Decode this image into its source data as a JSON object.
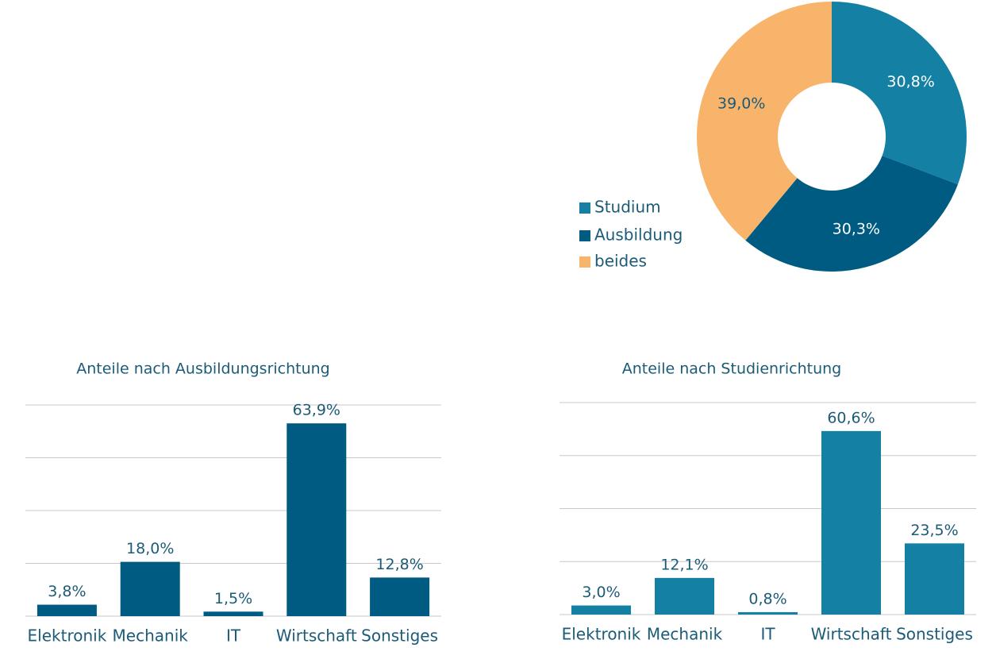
{
  "chart_data": [
    {
      "type": "pie",
      "categories": [
        "Studium",
        "Ausbildung",
        "beides"
      ],
      "values": [
        30.8,
        30.3,
        39.0
      ],
      "value_labels": [
        "30,8%",
        "30,3%",
        "39,0%"
      ],
      "colors": [
        "#1380a4",
        "#005b82",
        "#f9b46b"
      ],
      "donut": true,
      "legend": "left"
    },
    {
      "type": "bar",
      "title": "Anteile nach Ausbildungsrichtung",
      "categories": [
        "Elektronik",
        "Mechanik",
        "IT",
        "Wirtschaft",
        "Sonstiges"
      ],
      "values": [
        3.8,
        18.0,
        1.5,
        63.9,
        12.8
      ],
      "value_labels": [
        "3,8%",
        "18,0%",
        "1,5%",
        "63,9%",
        "12,8%"
      ],
      "color": "#005b82",
      "ylim": [
        0,
        70
      ],
      "yticks": [
        0,
        17.5,
        35,
        52.5,
        70
      ],
      "grid": true
    },
    {
      "type": "bar",
      "title": "Anteile nach Studienrichtung",
      "categories": [
        "Elektronik",
        "Mechanik",
        "IT",
        "Wirtschaft",
        "Sonstiges"
      ],
      "values": [
        3.0,
        12.1,
        0.8,
        60.6,
        23.5
      ],
      "value_labels": [
        "3,0%",
        "12,1%",
        "0,8%",
        "60,6%",
        "23,5%"
      ],
      "color": "#1380a4",
      "ylim": [
        0,
        70
      ],
      "yticks": [
        0,
        17.5,
        35,
        52.5,
        70
      ],
      "grid": true
    }
  ]
}
